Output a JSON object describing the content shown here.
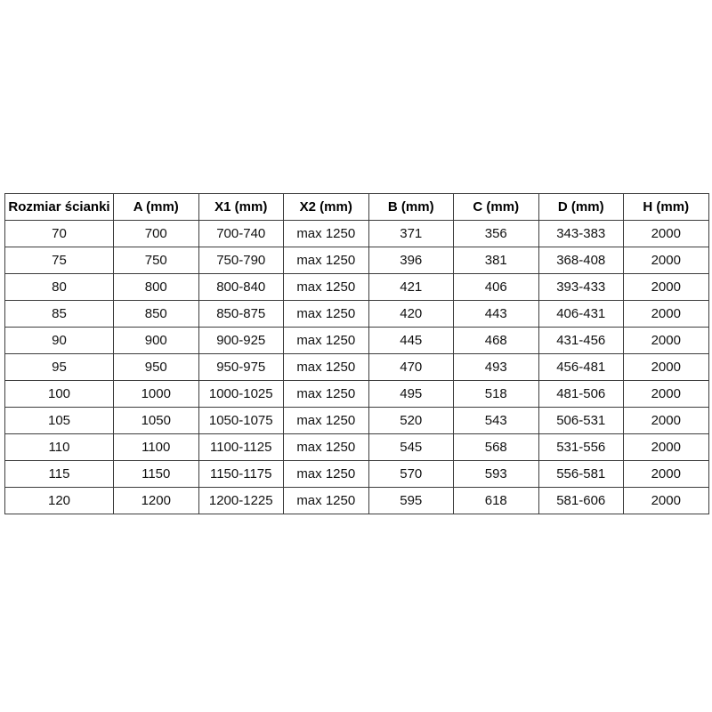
{
  "table": {
    "headers": [
      "Rozmiar ścianki",
      "A (mm)",
      "X1 (mm)",
      "X2 (mm)",
      "B (mm)",
      "C (mm)",
      "D (mm)",
      "H (mm)"
    ],
    "rows": [
      [
        "70",
        "700",
        "700-740",
        "max 1250",
        "371",
        "356",
        "343-383",
        "2000"
      ],
      [
        "75",
        "750",
        "750-790",
        "max 1250",
        "396",
        "381",
        "368-408",
        "2000"
      ],
      [
        "80",
        "800",
        "800-840",
        "max 1250",
        "421",
        "406",
        "393-433",
        "2000"
      ],
      [
        "85",
        "850",
        "850-875",
        "max 1250",
        "420",
        "443",
        "406-431",
        "2000"
      ],
      [
        "90",
        "900",
        "900-925",
        "max 1250",
        "445",
        "468",
        "431-456",
        "2000"
      ],
      [
        "95",
        "950",
        "950-975",
        "max 1250",
        "470",
        "493",
        "456-481",
        "2000"
      ],
      [
        "100",
        "1000",
        "1000-1025",
        "max 1250",
        "495",
        "518",
        "481-506",
        "2000"
      ],
      [
        "105",
        "1050",
        "1050-1075",
        "max 1250",
        "520",
        "543",
        "506-531",
        "2000"
      ],
      [
        "110",
        "1100",
        "1100-1125",
        "max 1250",
        "545",
        "568",
        "531-556",
        "2000"
      ],
      [
        "115",
        "1150",
        "1150-1175",
        "max 1250",
        "570",
        "593",
        "556-581",
        "2000"
      ],
      [
        "120",
        "1200",
        "1200-1225",
        "max 1250",
        "595",
        "618",
        "581-606",
        "2000"
      ]
    ]
  },
  "colors": {
    "background": "#ffffff",
    "border": "#3c3c3c",
    "header_text": "#000000",
    "cell_text": "#111111"
  }
}
